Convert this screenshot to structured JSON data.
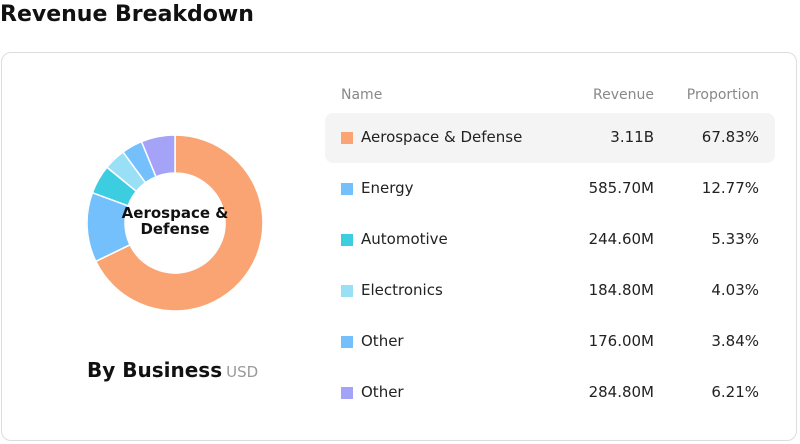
{
  "title": "Revenue Breakdown",
  "chart_data": {
    "type": "donut",
    "center_label": "Aerospace & Defense",
    "caption": "By Business",
    "unit": "USD",
    "columns": [
      "Name",
      "Revenue",
      "Proportion"
    ],
    "categories": [
      "Aerospace & Defense",
      "Energy",
      "Automotive",
      "Electronics",
      "Other",
      "Other"
    ],
    "revenue": [
      "3.11B",
      "585.70M",
      "244.60M",
      "184.80M",
      "176.00M",
      "284.80M"
    ],
    "values": [
      67.83,
      12.77,
      5.33,
      4.03,
      3.84,
      6.21
    ],
    "value_labels": [
      "67.83%",
      "12.77%",
      "5.33%",
      "4.03%",
      "3.84%",
      "6.21%"
    ],
    "colors": [
      "#f9a472",
      "#74c0fc",
      "#3dcde0",
      "#99e0f7",
      "#74c0fc",
      "#a5a3f7"
    ],
    "highlighted": 0
  }
}
